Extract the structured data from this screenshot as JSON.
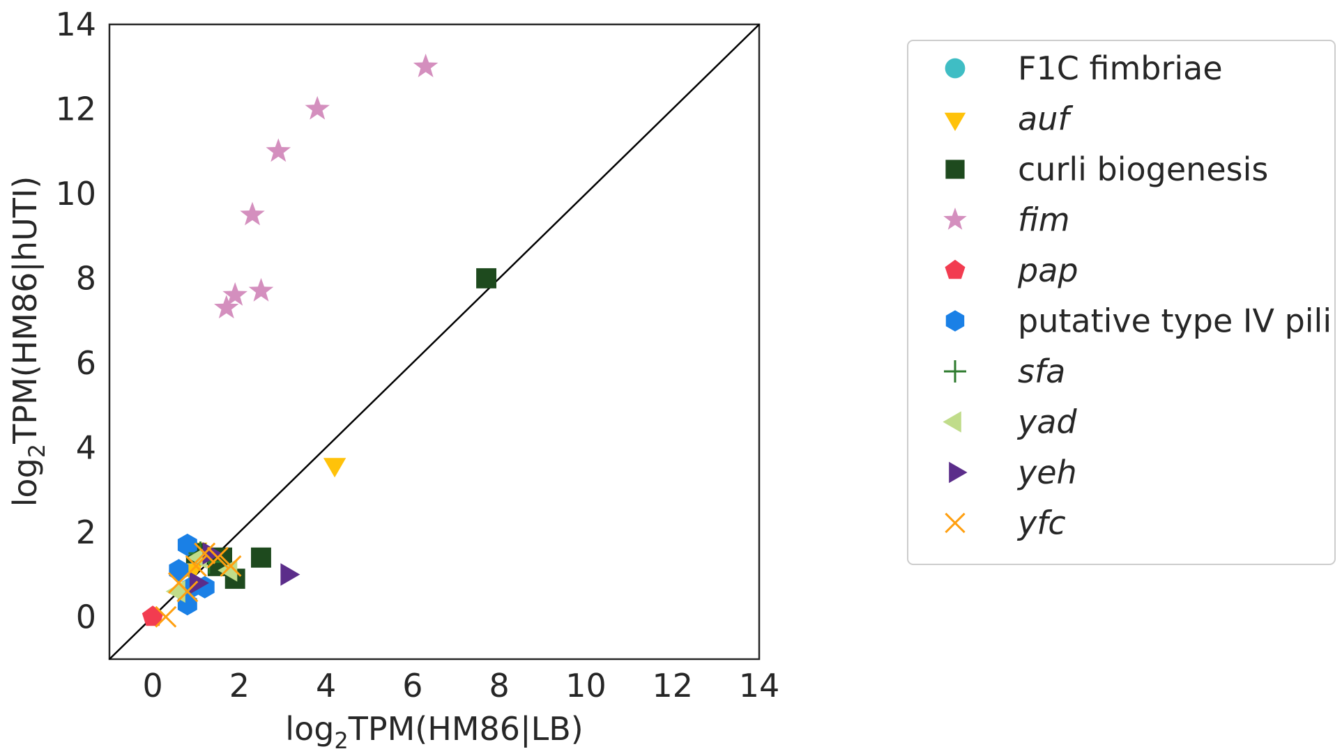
{
  "chart_data": {
    "type": "scatter",
    "xlim": [
      -1,
      14
    ],
    "ylim": [
      -1,
      14
    ],
    "xticks": [
      0,
      2,
      4,
      6,
      8,
      10,
      12,
      14
    ],
    "yticks": [
      0,
      2,
      4,
      6,
      8,
      10,
      12,
      14
    ],
    "xlabel": {
      "pre": "log",
      "sub": "2",
      "post": "TPM(HM86|LB)"
    },
    "ylabel": {
      "pre": "log",
      "sub": "2",
      "post": "TPM(HM86|hUTI)"
    },
    "grid": false,
    "diagonal_line": {
      "from": [
        -1,
        -1
      ],
      "to": [
        14,
        14
      ],
      "color": "#000000"
    },
    "legend_position": "outside-right",
    "series": [
      {
        "name": "F1C fimbriae",
        "italic": false,
        "marker": "circle",
        "color": "#3fbdc4",
        "points": []
      },
      {
        "name": "auf",
        "italic": true,
        "marker": "triangle-down",
        "color": "#ffc20a",
        "points": [
          [
            4.2,
            3.6
          ],
          [
            1.0,
            1.6
          ],
          [
            0.9,
            1.1
          ]
        ]
      },
      {
        "name": "curli biogenesis",
        "italic": false,
        "marker": "square",
        "color": "#1e4a1e",
        "points": [
          [
            7.7,
            8.0
          ],
          [
            2.5,
            1.4
          ],
          [
            1.6,
            1.4
          ],
          [
            1.0,
            1.5
          ],
          [
            1.9,
            0.9
          ],
          [
            1.5,
            1.2
          ]
        ]
      },
      {
        "name": "fim",
        "italic": true,
        "marker": "star",
        "color": "#d48fbe",
        "points": [
          [
            6.3,
            13.0
          ],
          [
            3.8,
            12.0
          ],
          [
            2.9,
            11.0
          ],
          [
            2.3,
            9.5
          ],
          [
            2.5,
            7.7
          ],
          [
            1.9,
            7.6
          ],
          [
            1.7,
            7.3
          ]
        ]
      },
      {
        "name": "pap",
        "italic": true,
        "marker": "pentagon",
        "color": "#f23c50",
        "points": [
          [
            0.0,
            0.0
          ]
        ]
      },
      {
        "name": "putative type IV pili",
        "italic": false,
        "marker": "hexagon",
        "color": "#1a80e6",
        "points": [
          [
            0.8,
            1.7
          ],
          [
            0.6,
            1.1
          ],
          [
            0.9,
            0.7
          ],
          [
            1.2,
            0.7
          ],
          [
            0.8,
            0.3
          ]
        ]
      },
      {
        "name": "sfa",
        "italic": true,
        "marker": "plus",
        "color": "#2d7a2d",
        "points": [
          [
            1.1,
            1.5
          ],
          [
            1.3,
            1.3
          ]
        ]
      },
      {
        "name": "yad",
        "italic": true,
        "marker": "triangle-left",
        "color": "#c0dc8a",
        "points": [
          [
            0.6,
            0.6
          ],
          [
            1.8,
            1.1
          ],
          [
            1.1,
            1.4
          ]
        ]
      },
      {
        "name": "yeh",
        "italic": true,
        "marker": "triangle-right",
        "color": "#5b2d8a",
        "points": [
          [
            3.1,
            1.0
          ],
          [
            1.3,
            1.5
          ],
          [
            1.0,
            0.8
          ]
        ]
      },
      {
        "name": "yfc",
        "italic": true,
        "marker": "x",
        "color": "#ff9f0f",
        "points": [
          [
            0.3,
            0.0
          ],
          [
            0.6,
            0.8
          ],
          [
            0.8,
            0.6
          ],
          [
            1.2,
            1.5
          ],
          [
            1.5,
            1.4
          ],
          [
            1.8,
            1.2
          ],
          [
            1.0,
            1.2
          ]
        ]
      }
    ]
  }
}
